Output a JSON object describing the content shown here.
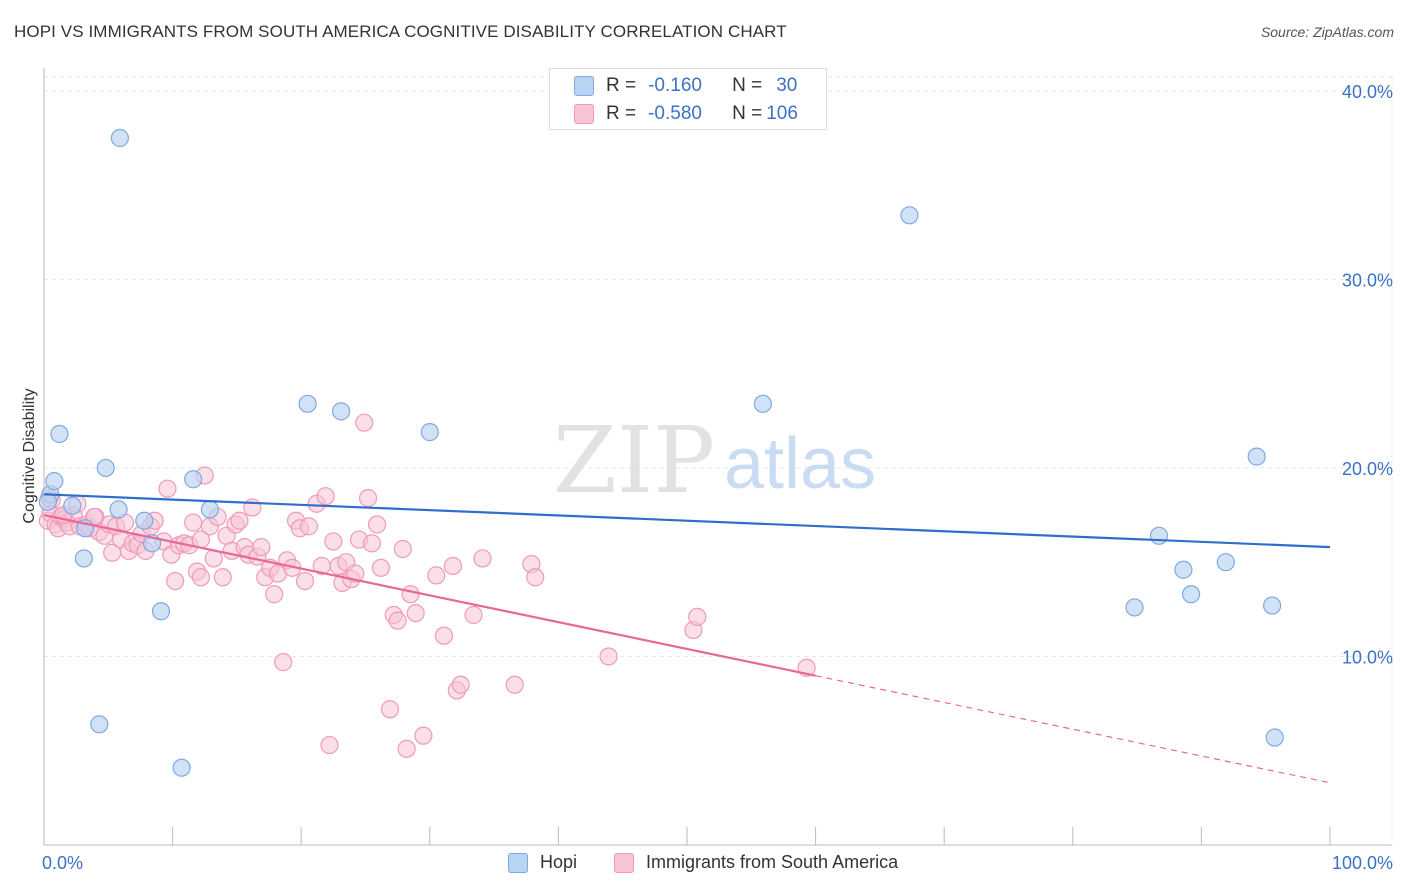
{
  "title": "HOPI VS IMMIGRANTS FROM SOUTH AMERICA COGNITIVE DISABILITY CORRELATION CHART",
  "source": "Source: ZipAtlas.com",
  "watermark": {
    "zip": "ZIP",
    "atlas": "atlas"
  },
  "legend_top": [
    {
      "r_label": "R =",
      "r_value": "-0.160",
      "n_label": "N =",
      "n_value": "30"
    },
    {
      "r_label": "R =",
      "r_value": "-0.580",
      "n_label": "N =",
      "n_value": "106"
    }
  ],
  "legend_bottom": [
    "Hopi",
    "Immigrants from South America"
  ],
  "colors": {
    "hopi_fill": "#b9d3f2",
    "hopi_stroke": "#7fa9e0",
    "hopi_line": "#2f6fca",
    "imm_fill": "#f7c4d5",
    "imm_stroke": "#ef9ab8",
    "imm_line": "#e8679a",
    "axis_text": "#3b72c4",
    "grid": "#e6e6e6"
  },
  "chart_data": {
    "type": "scatter",
    "title": "HOPI VS IMMIGRANTS FROM SOUTH AMERICA COGNITIVE DISABILITY CORRELATION CHART",
    "xlabel": "",
    "ylabel": "Cognitive Disability",
    "xlim": [
      0,
      100
    ],
    "ylim": [
      0,
      41
    ],
    "x_tick_labels": [
      "0.0%",
      "100.0%"
    ],
    "y_ticks": [
      10,
      20,
      30,
      40
    ],
    "y_tick_labels": [
      "10.0%",
      "20.0%",
      "30.0%",
      "40.0%"
    ],
    "grid": true,
    "legend_position": "top-center",
    "series": [
      {
        "name": "Hopi",
        "r": -0.16,
        "n": 30,
        "trend": {
          "x": [
            0,
            100
          ],
          "y": [
            18.6,
            15.8
          ],
          "dashed_from": null
        },
        "points": [
          [
            0.5,
            18.6
          ],
          [
            0.8,
            19.3
          ],
          [
            1.2,
            21.8
          ],
          [
            2.2,
            18.0
          ],
          [
            3.2,
            16.8
          ],
          [
            3.1,
            15.2
          ],
          [
            4.3,
            6.4
          ],
          [
            4.8,
            20.0
          ],
          [
            5.8,
            17.8
          ],
          [
            7.8,
            17.2
          ],
          [
            9.1,
            12.4
          ],
          [
            10.7,
            4.1
          ],
          [
            11.6,
            19.4
          ],
          [
            12.9,
            17.8
          ],
          [
            5.9,
            37.5
          ],
          [
            8.4,
            16.0
          ],
          [
            20.5,
            23.4
          ],
          [
            23.1,
            23.0
          ],
          [
            30.0,
            21.9
          ],
          [
            55.9,
            23.4
          ],
          [
            67.3,
            33.4
          ],
          [
            84.8,
            12.6
          ],
          [
            86.7,
            16.4
          ],
          [
            88.6,
            14.6
          ],
          [
            89.2,
            13.3
          ],
          [
            91.9,
            15.0
          ],
          [
            94.3,
            20.6
          ],
          [
            95.5,
            12.7
          ],
          [
            95.7,
            5.7
          ],
          [
            0.3,
            18.2
          ]
        ]
      },
      {
        "name": "Immigrants from South America",
        "r": -0.58,
        "n": 106,
        "trend": {
          "x": [
            0,
            100
          ],
          "y": [
            17.5,
            3.3
          ],
          "dashed_from": 60
        },
        "points": [
          [
            0.3,
            17.2
          ],
          [
            0.5,
            17.6
          ],
          [
            0.6,
            18.3
          ],
          [
            0.9,
            17.0
          ],
          [
            1.1,
            16.8
          ],
          [
            1.3,
            17.4
          ],
          [
            1.6,
            17.3
          ],
          [
            1.8,
            17.1
          ],
          [
            2.0,
            16.9
          ],
          [
            2.3,
            17.5
          ],
          [
            2.6,
            18.1
          ],
          [
            2.8,
            16.9
          ],
          [
            3.3,
            17.0
          ],
          [
            3.6,
            16.8
          ],
          [
            4.0,
            17.4
          ],
          [
            4.3,
            16.6
          ],
          [
            4.7,
            16.4
          ],
          [
            5.1,
            17.0
          ],
          [
            5.3,
            15.5
          ],
          [
            5.6,
            16.9
          ],
          [
            6.0,
            16.2
          ],
          [
            6.3,
            17.1
          ],
          [
            6.6,
            15.6
          ],
          [
            6.9,
            16.0
          ],
          [
            7.3,
            15.9
          ],
          [
            7.6,
            16.5
          ],
          [
            7.9,
            15.6
          ],
          [
            8.3,
            16.9
          ],
          [
            8.6,
            17.2
          ],
          [
            9.3,
            16.1
          ],
          [
            9.6,
            18.9
          ],
          [
            9.9,
            15.4
          ],
          [
            10.2,
            14.0
          ],
          [
            10.5,
            15.9
          ],
          [
            10.9,
            16.0
          ],
          [
            11.3,
            15.9
          ],
          [
            11.6,
            17.1
          ],
          [
            11.9,
            14.5
          ],
          [
            12.2,
            14.2
          ],
          [
            12.5,
            19.6
          ],
          [
            12.9,
            16.9
          ],
          [
            13.2,
            15.2
          ],
          [
            13.5,
            17.4
          ],
          [
            13.9,
            14.2
          ],
          [
            14.2,
            16.4
          ],
          [
            14.6,
            15.6
          ],
          [
            14.9,
            17.0
          ],
          [
            15.2,
            17.2
          ],
          [
            15.6,
            15.8
          ],
          [
            15.9,
            15.4
          ],
          [
            16.2,
            17.9
          ],
          [
            16.6,
            15.3
          ],
          [
            16.9,
            15.8
          ],
          [
            17.2,
            14.2
          ],
          [
            17.6,
            14.7
          ],
          [
            17.9,
            13.3
          ],
          [
            18.2,
            14.4
          ],
          [
            18.6,
            9.7
          ],
          [
            18.9,
            15.1
          ],
          [
            19.3,
            14.7
          ],
          [
            19.6,
            17.2
          ],
          [
            19.9,
            16.8
          ],
          [
            20.3,
            14.0
          ],
          [
            20.6,
            16.9
          ],
          [
            21.2,
            18.1
          ],
          [
            21.6,
            14.8
          ],
          [
            21.9,
            18.5
          ],
          [
            22.2,
            5.3
          ],
          [
            22.5,
            16.1
          ],
          [
            22.9,
            14.8
          ],
          [
            23.2,
            13.9
          ],
          [
            23.5,
            15.0
          ],
          [
            23.9,
            14.1
          ],
          [
            24.2,
            14.4
          ],
          [
            24.5,
            16.2
          ],
          [
            24.9,
            22.4
          ],
          [
            25.2,
            18.4
          ],
          [
            25.5,
            16.0
          ],
          [
            25.9,
            17.0
          ],
          [
            26.2,
            14.7
          ],
          [
            26.9,
            7.2
          ],
          [
            27.2,
            12.2
          ],
          [
            27.5,
            11.9
          ],
          [
            27.9,
            15.7
          ],
          [
            28.2,
            5.1
          ],
          [
            28.5,
            13.3
          ],
          [
            28.9,
            12.3
          ],
          [
            29.5,
            5.8
          ],
          [
            30.5,
            14.3
          ],
          [
            31.1,
            11.1
          ],
          [
            31.8,
            14.8
          ],
          [
            32.1,
            8.2
          ],
          [
            32.4,
            8.5
          ],
          [
            33.4,
            12.2
          ],
          [
            34.1,
            15.2
          ],
          [
            36.6,
            8.5
          ],
          [
            37.9,
            14.9
          ],
          [
            38.2,
            14.2
          ],
          [
            43.9,
            10.0
          ],
          [
            50.5,
            11.4
          ],
          [
            50.8,
            12.1
          ],
          [
            59.3,
            9.4
          ],
          [
            0.4,
            18.4
          ],
          [
            1.5,
            17.5
          ],
          [
            3.9,
            17.4
          ],
          [
            12.2,
            16.2
          ]
        ]
      }
    ]
  }
}
